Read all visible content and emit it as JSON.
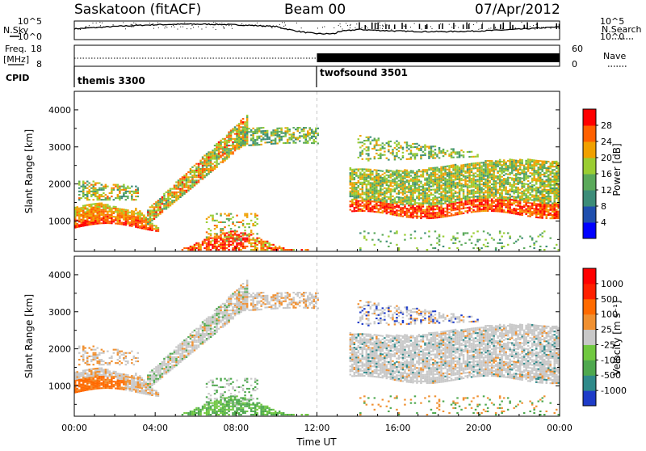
{
  "header": {
    "station": "Saskatoon (fitACF)",
    "beam": "Beam 00",
    "date": "07/Apr/2012"
  },
  "strip_labels": {
    "nsky": "N.Sky",
    "nsearch": "N.Search",
    "freq_line1": "Freq.",
    "freq_line2": "[MHz]",
    "nave": "Nave",
    "cpid": "CPID"
  },
  "strip_ticks": {
    "noise_top": "10^5",
    "noise_bottom": "10^0",
    "freq_top": "18",
    "freq_bottom": "8",
    "nave_top": "60",
    "nave_bottom": "0"
  },
  "cpid_modes": [
    {
      "name": "themis 3300",
      "start_hour": 0
    },
    {
      "name": "twofsound 3501",
      "start_hour": 12
    }
  ],
  "chart_data": [
    {
      "type": "heatmap",
      "name": "power",
      "ylabel": "Slant Range [km]",
      "xlabel": "",
      "xlim": [
        0,
        24
      ],
      "ylim": [
        180,
        4500
      ],
      "yticks": [
        "1000",
        "2000",
        "3000",
        "4000"
      ],
      "colorbar": {
        "label": "Power [dB]",
        "ticks": [
          "4",
          "8",
          "12",
          "16",
          "20",
          "24",
          "28"
        ],
        "colors": [
          "#0000ff",
          "#1f4fae",
          "#3c8c78",
          "#5aa95a",
          "#9acd32",
          "#f0a000",
          "#ff6000",
          "#ff0000"
        ]
      }
    },
    {
      "type": "heatmap",
      "name": "velocity",
      "ylabel": "Slant Range [km]",
      "xlabel": "Time UT",
      "xlim": [
        0,
        24
      ],
      "ylim": [
        180,
        4500
      ],
      "yticks": [
        "1000",
        "2000",
        "3000",
        "4000"
      ],
      "xticks": [
        "00:00",
        "04:00",
        "08:00",
        "12:00",
        "16:00",
        "20:00",
        "00:00"
      ],
      "colorbar": {
        "label": "Velocity [m s⁻¹]",
        "ticks": [
          "1000",
          "500",
          "100",
          "25",
          "-25",
          "-100",
          "-500",
          "-1000"
        ],
        "colors": [
          "#1e3cc8",
          "#2f8a8a",
          "#4ea84e",
          "#70c840",
          "#c8c8c8",
          "#f09030",
          "#ff6a00",
          "#ff2000",
          "#ff0000"
        ]
      }
    }
  ]
}
